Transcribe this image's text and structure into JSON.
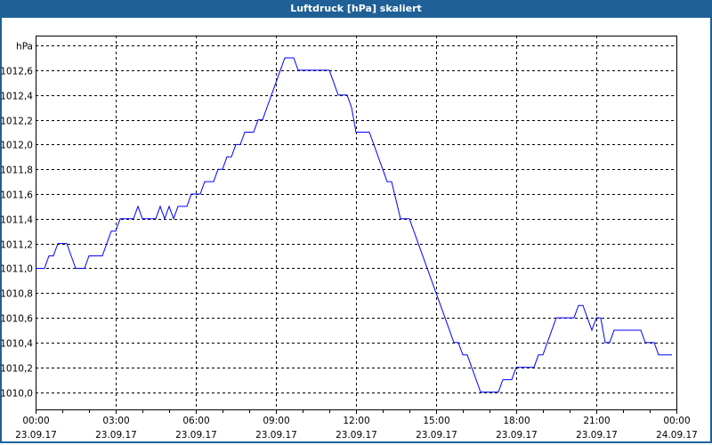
{
  "window": {
    "title": "Luftdruck [hPa] skaliert"
  },
  "colors": {
    "titlebar": "#1f6196",
    "line": "#0000ff",
    "grid": "#000000"
  },
  "chart_data": {
    "type": "line",
    "title": "Luftdruck [hPa] skaliert",
    "ylabel": "hPa",
    "xlabel": "",
    "ylim": [
      1009.86,
      1012.88
    ],
    "xlim": [
      "23.09.17 00:00",
      "24.09.17 00:00"
    ],
    "grid": true,
    "y_ticks": [
      "1012,6",
      "1012,4",
      "1012,2",
      "1012,0",
      "1011,8",
      "1011,6",
      "1011,4",
      "1011,2",
      "1011,0",
      "1010,8",
      "1010,6",
      "1010,4",
      "1010,2",
      "1010,0"
    ],
    "y_tick_values": [
      1012.6,
      1012.4,
      1012.2,
      1012.0,
      1011.8,
      1011.6,
      1011.4,
      1011.2,
      1011.0,
      1010.8,
      1010.6,
      1010.4,
      1010.2,
      1010.0
    ],
    "x_ticks": [
      {
        "time": "00:00",
        "date": "23.09.17"
      },
      {
        "time": "03:00",
        "date": "23.09.17"
      },
      {
        "time": "06:00",
        "date": "23.09.17"
      },
      {
        "time": "09:00",
        "date": "23.09.17"
      },
      {
        "time": "12:00",
        "date": "23.09.17"
      },
      {
        "time": "15:00",
        "date": "23.09.17"
      },
      {
        "time": "18:00",
        "date": "23.09.17"
      },
      {
        "time": "21:00",
        "date": "23.09.17"
      },
      {
        "time": "00:00",
        "date": "24.09.17"
      }
    ],
    "series": [
      {
        "x": [
          "00:00",
          "00:20",
          "00:30",
          "00:40",
          "00:50",
          "01:10",
          "01:30",
          "01:50",
          "02:00",
          "02:30",
          "02:40",
          "02:50",
          "03:00",
          "03:10",
          "03:40",
          "03:50",
          "04:00",
          "04:30",
          "04:40",
          "04:50",
          "05:00",
          "05:10",
          "05:20",
          "05:40",
          "05:50",
          "06:10",
          "06:20",
          "06:40",
          "06:50",
          "07:00",
          "07:10",
          "07:20",
          "07:30",
          "07:40",
          "07:50",
          "08:10",
          "08:20",
          "08:30",
          "09:20",
          "09:40",
          "09:50",
          "11:00",
          "11:20",
          "11:40",
          "11:50",
          "12:00",
          "12:30",
          "13:10",
          "13:20",
          "13:40",
          "14:00",
          "15:40",
          "15:50",
          "16:00",
          "16:10",
          "16:40",
          "17:20",
          "17:30",
          "17:50",
          "18:00",
          "18:40",
          "18:50",
          "19:00",
          "19:30",
          "20:10",
          "20:20",
          "20:30",
          "20:50",
          "21:00",
          "21:10",
          "21:20",
          "21:30",
          "21:40",
          "22:40",
          "22:50",
          "23:10",
          "23:20",
          "23:50"
        ],
        "y": [
          1011.0,
          1011.0,
          1011.1,
          1011.1,
          1011.2,
          1011.2,
          1011.0,
          1011.0,
          1011.1,
          1011.1,
          1011.2,
          1011.3,
          1011.3,
          1011.4,
          1011.4,
          1011.5,
          1011.4,
          1011.4,
          1011.5,
          1011.4,
          1011.5,
          1011.4,
          1011.5,
          1011.5,
          1011.6,
          1011.6,
          1011.7,
          1011.7,
          1011.8,
          1011.8,
          1011.9,
          1011.9,
          1012.0,
          1012.0,
          1012.1,
          1012.1,
          1012.2,
          1012.2,
          1012.7,
          1012.7,
          1012.6,
          1012.6,
          1012.4,
          1012.4,
          1012.3,
          1012.1,
          1012.1,
          1011.7,
          1011.7,
          1011.4,
          1011.4,
          1010.4,
          1010.4,
          1010.3,
          1010.3,
          1010.0,
          1010.0,
          1010.1,
          1010.1,
          1010.2,
          1010.2,
          1010.3,
          1010.3,
          1010.6,
          1010.6,
          1010.7,
          1010.7,
          1010.5,
          1010.6,
          1010.6,
          1010.4,
          1010.4,
          1010.5,
          1010.5,
          1010.4,
          1010.4,
          1010.3,
          1010.3
        ]
      }
    ]
  }
}
